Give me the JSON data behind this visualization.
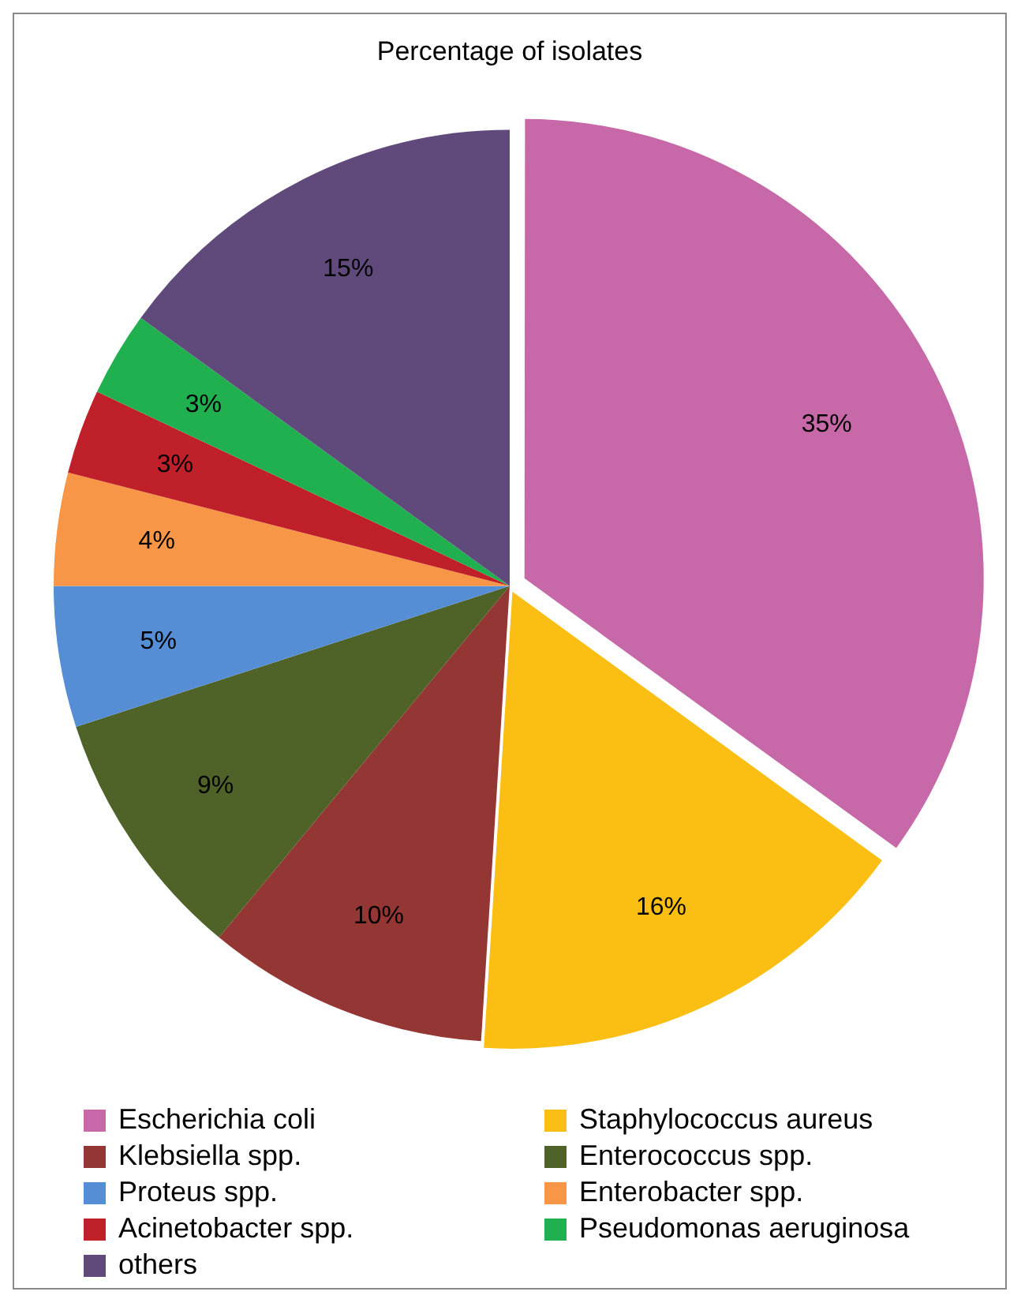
{
  "chart_data": {
    "type": "pie",
    "title": "Percentage of isolates",
    "categories": [
      "Escherichia coli",
      "Staphylococcus aureus",
      "Klebsiella spp.",
      "Enterococcus spp.",
      "Proteus spp.",
      "Enterobacter spp.",
      "Acinetobacter spp.",
      "Pseudomonas aeruginosa",
      "others"
    ],
    "values": [
      35,
      16,
      10,
      9,
      5,
      4,
      3,
      3,
      15
    ],
    "value_labels": [
      "35%",
      "16%",
      "10%",
      "9%",
      "5%",
      "4%",
      "3%",
      "3%",
      "15%"
    ],
    "colors": [
      "#c768a8",
      "#fbbf14",
      "#943634",
      "#4f6228",
      "#558ed5",
      "#f79646",
      "#c0202a",
      "#20b050",
      "#604a7b"
    ],
    "legend": "bottom"
  }
}
